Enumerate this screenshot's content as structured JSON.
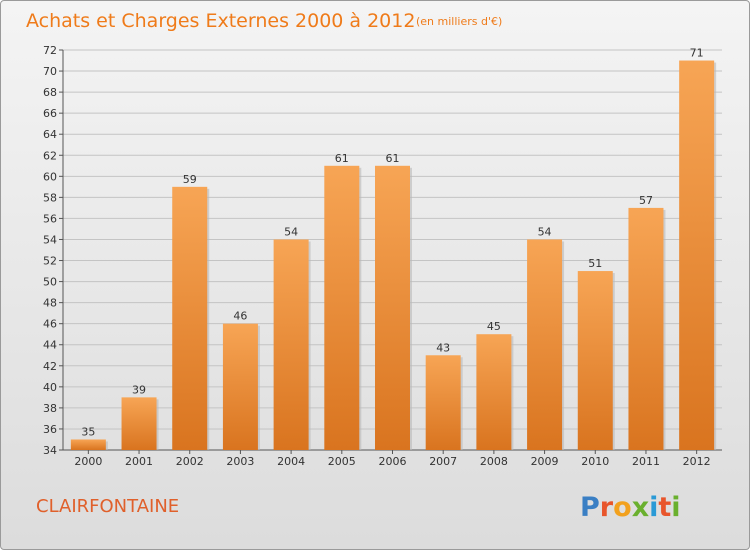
{
  "chart_data": {
    "type": "bar",
    "title": "Achats et Charges Externes 2000 à 2012",
    "subtitle": "(en milliers d'€)",
    "categories": [
      "2000",
      "2001",
      "2002",
      "2003",
      "2004",
      "2005",
      "2006",
      "2007",
      "2008",
      "2009",
      "2010",
      "2011",
      "2012"
    ],
    "values": [
      35,
      39,
      59,
      46,
      54,
      61,
      61,
      43,
      45,
      54,
      51,
      57,
      71
    ],
    "ylim": [
      34,
      72
    ],
    "ytick_step": 2,
    "grid": true,
    "bar_color_top": "#f7a555",
    "bar_color_bottom": "#d9741f"
  },
  "footer": {
    "city": "CLAIRFONTAINE",
    "logo_letters": [
      "P",
      "r",
      "o",
      "x",
      "i",
      "t",
      "i"
    ],
    "logo_colors": [
      "#3a7fc4",
      "#e8552b",
      "#f2a11e",
      "#6ab02e",
      "#2a9ad6",
      "#e8552b",
      "#6ab02e"
    ]
  }
}
